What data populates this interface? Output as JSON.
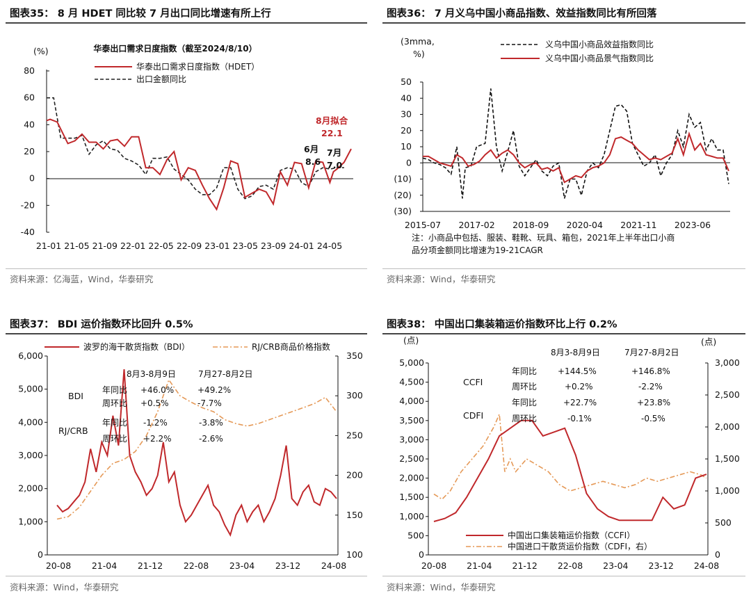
{
  "panels": [
    {
      "title": "图表35： 8 月 HDET 同比较 7 月出口同比增速有所上行",
      "source": "资料来源：亿海蓝，Wind，华泰研究",
      "chart_data": {
        "type": "line",
        "title": "华泰出口需求日度指数（截至2024/8/10）",
        "unit": "(%)",
        "x_ticks": [
          "21-01",
          "21-05",
          "21-09",
          "22-01",
          "22-05",
          "22-09",
          "23-01",
          "23-05",
          "23-09",
          "24-01",
          "24-05"
        ],
        "ylim": [
          -40,
          80
        ],
        "y_ticks": [
          "80",
          "60",
          "40",
          "20",
          "0",
          "-20",
          "-40"
        ],
        "series": [
          {
            "name": "华泰出口需求日度指数（HDET）",
            "color": "#c0282b",
            "style": "solid",
            "t": [
              0,
              0.5,
              1.5,
              3,
              4,
              5,
              6,
              7,
              8,
              9,
              10,
              11,
              12,
              13,
              14,
              15,
              16,
              17,
              18,
              19,
              20,
              21,
              22,
              23,
              24,
              25,
              26,
              27,
              28,
              29,
              30,
              31,
              32,
              33,
              34,
              35,
              36,
              37,
              38,
              39,
              40,
              40.5,
              41,
              42,
              43
            ],
            "values": [
              43,
              44,
              42,
              26,
              28,
              33,
              27,
              27,
              22,
              28,
              29,
              24,
              31,
              31,
              8,
              8,
              3,
              14,
              20,
              -1,
              8,
              6,
              -5,
              -15,
              -23,
              -7,
              13,
              11,
              -14,
              -11,
              -8,
              -10,
              -19,
              5,
              -5,
              12,
              11,
              -7,
              13,
              12,
              -3,
              5,
              7,
              12,
              22
            ]
          },
          {
            "name": "出口金额同比",
            "color": "#222222",
            "style": "dashed",
            "t": [
              0,
              1,
              2,
              3,
              4,
              5,
              6,
              7,
              8,
              9,
              10,
              11,
              12,
              13,
              14,
              15,
              16,
              17,
              18,
              19,
              20,
              21,
              22,
              23,
              24,
              25,
              26,
              27,
              28,
              29,
              30,
              31,
              32,
              33,
              34,
              35,
              36,
              37,
              38,
              39,
              40,
              41,
              42
            ],
            "values": [
              60,
              60,
              30,
              30,
              30,
              32,
              18,
              25,
              28,
              22,
              21,
              15,
              13,
              10,
              3,
              15,
              15,
              16,
              7,
              3,
              -1,
              -8,
              -12,
              -12,
              -7,
              8,
              8,
              -8,
              -15,
              -13,
              -6,
              -5,
              -8,
              6,
              8,
              7,
              -3,
              -6,
              5,
              8,
              7,
              8,
              8
            ]
          }
        ],
        "annotations": {
          "aug_label": "8月拟合",
          "aug_value": "22.1",
          "jun_label": "6月",
          "jun_value": "8.6",
          "jul_label": "7月",
          "jul_value": "7.0"
        }
      }
    },
    {
      "title": "图表36： 7 月义乌中国小商品指数、效益指数同比有所回落",
      "source": "资料来源：Wind，华泰研究",
      "chart_data": {
        "type": "line",
        "unit_line1": "(3mma,",
        "unit_line2": "%)",
        "x_ticks": [
          "2015-07",
          "2017-02",
          "2018-09",
          "2020-04",
          "2021-11",
          "2023-06"
        ],
        "ylim": [
          -30,
          50
        ],
        "y_ticks": [
          "50",
          "40",
          "30",
          "20",
          "10",
          "0",
          "(10)",
          "(20)",
          "(30)"
        ],
        "series": [
          {
            "name": "义乌中国小商品效益指数同比",
            "color": "#111111",
            "style": "dashed",
            "t": [
              0,
              2,
              4,
              6,
              8,
              10,
              12,
              14,
              15,
              17,
              19,
              22,
              24,
              26,
              28,
              30,
              32,
              34,
              36,
              38,
              40,
              42,
              44,
              46,
              48,
              50,
              52,
              54,
              56,
              58,
              60,
              62,
              64,
              66,
              68,
              70,
              72,
              74,
              76,
              78,
              80,
              82,
              84,
              86,
              88,
              90,
              92,
              94,
              96,
              98,
              100,
              102,
              104,
              106,
              108
            ],
            "values": [
              3,
              2,
              0,
              -1,
              -3,
              -7,
              10,
              -22,
              -3,
              -2,
              10,
              12,
              46,
              10,
              -5,
              7,
              20,
              -2,
              -8,
              -3,
              2,
              -5,
              -8,
              -2,
              0,
              -22,
              -10,
              -10,
              -20,
              -5,
              0,
              -3,
              5,
              20,
              35,
              36,
              32,
              12,
              5,
              -2,
              0,
              5,
              -8,
              0,
              5,
              20,
              10,
              30,
              22,
              25,
              8,
              15,
              8,
              8,
              -13
            ]
          },
          {
            "name": "义乌中国小商品景气指数同比",
            "color": "#c0282b",
            "style": "solid",
            "t": [
              0,
              2,
              4,
              6,
              8,
              10,
              12,
              14,
              16,
              18,
              20,
              22,
              24,
              26,
              28,
              30,
              32,
              34,
              36,
              38,
              40,
              42,
              44,
              46,
              48,
              50,
              52,
              54,
              56,
              58,
              60,
              62,
              64,
              66,
              68,
              70,
              72,
              74,
              76,
              78,
              80,
              82,
              84,
              86,
              88,
              90,
              92,
              94,
              96,
              98,
              100,
              102,
              104,
              106,
              108
            ],
            "values": [
              4,
              4,
              2,
              0,
              -1,
              -2,
              5,
              3,
              -2,
              -1,
              1,
              5,
              8,
              3,
              6,
              8,
              5,
              0,
              -3,
              -1,
              0,
              -4,
              -3,
              -5,
              -3,
              -12,
              -10,
              -8,
              -9,
              -5,
              -3,
              -2,
              0,
              5,
              15,
              16,
              14,
              12,
              8,
              5,
              2,
              3,
              2,
              4,
              6,
              15,
              5,
              18,
              8,
              12,
              5,
              4,
              3,
              3,
              -5
            ]
          }
        ],
        "note_line1": "注：小商品中包括、服装、鞋靴、玩具、箱包，2021年上半年出口小商",
        "note_line2": "品分项金额同比增速为19-21CAGR"
      }
    },
    {
      "title": "图表37： BDI 运价指数环比回升 0.5%",
      "source": "资料来源：Wind，华泰研究",
      "chart_data": {
        "type": "line",
        "x_ticks": [
          "20-08",
          "21-04",
          "21-12",
          "22-08",
          "23-04",
          "23-12",
          "24-08"
        ],
        "ylim_left": [
          0,
          6000
        ],
        "y_ticks_left": [
          "6,000",
          "5,000",
          "4,000",
          "3,000",
          "2,000",
          "1,000",
          "0"
        ],
        "ylim_right": [
          100,
          350
        ],
        "y_ticks_right": [
          "350",
          "300",
          "250",
          "200",
          "150",
          "100"
        ],
        "series": [
          {
            "name": "波罗的海干散货指数（BDI）",
            "color": "#c0282b",
            "style": "solid",
            "axis": "left",
            "t": [
              0,
              2,
              4,
              6,
              8,
              10,
              12,
              14,
              16,
              18,
              20,
              22,
              24,
              26,
              28,
              30,
              32,
              34,
              36,
              38,
              40,
              42,
              44,
              46,
              48,
              50,
              52,
              54,
              56,
              58,
              60,
              62,
              64,
              66,
              68,
              70,
              72,
              74,
              76,
              78,
              80,
              82,
              84,
              86,
              88,
              90,
              92,
              94,
              96,
              98,
              100
            ],
            "values": [
              1500,
              1300,
              1400,
              1600,
              1800,
              2200,
              3200,
              2500,
              3400,
              3000,
              4200,
              3300,
              5600,
              3000,
              2500,
              2200,
              1800,
              2000,
              2400,
              3400,
              2200,
              2500,
              1500,
              1000,
              1200,
              1500,
              1800,
              2100,
              1500,
              1300,
              900,
              600,
              1200,
              1500,
              1000,
              1300,
              1500,
              1000,
              1300,
              1700,
              2400,
              3300,
              1700,
              1500,
              1900,
              2100,
              1600,
              1500,
              2000,
              1900,
              1700
            ]
          },
          {
            "name": "RJ/CRB商品价格指数",
            "color": "#e59957",
            "style": "dashdot",
            "axis": "right",
            "t": [
              0,
              4,
              8,
              12,
              16,
              20,
              24,
              28,
              32,
              36,
              40,
              44,
              48,
              52,
              56,
              60,
              64,
              68,
              72,
              76,
              80,
              84,
              88,
              92,
              96,
              100
            ],
            "values": [
              145,
              148,
              160,
              180,
              200,
              215,
              220,
              230,
              250,
              280,
              320,
              300,
              292,
              285,
              280,
              270,
              265,
              262,
              265,
              270,
              275,
              280,
              285,
              290,
              298,
              280
            ]
          }
        ],
        "stats_headers": [
          "8月3-8月9日",
          "7月27-8月2日"
        ],
        "stats": [
          {
            "group": "BDI",
            "rows": [
              [
                "年同比",
                "+46.0%",
                "+49.2%"
              ],
              [
                "周环比",
                "+0.5%",
                "-7.7%"
              ]
            ]
          },
          {
            "group": "RJ/CRB",
            "rows": [
              [
                "年同比",
                "-1.2%",
                "-3.8%"
              ],
              [
                "周环比",
                "+2.2%",
                "-2.6%"
              ]
            ]
          }
        ]
      }
    },
    {
      "title": "图表38： 中国出口集装箱运价指数环比上行 0.2%",
      "source": "资料来源：Wind，华泰研究",
      "chart_data": {
        "type": "line",
        "unit_left": "(点)",
        "unit_right": "(点)",
        "x_ticks": [
          "20-08",
          "21-04",
          "21-12",
          "22-08",
          "23-04",
          "23-12",
          "24-08"
        ],
        "ylim_left": [
          0,
          5000
        ],
        "y_ticks_left": [
          "5,000",
          "4,500",
          "4,000",
          "3,500",
          "3,000",
          "2,500",
          "2,000",
          "1,500",
          "1,000",
          "500",
          "0"
        ],
        "ylim_right": [
          0,
          3000
        ],
        "y_ticks_right": [
          "3,000",
          "2,500",
          "2,000",
          "1,500",
          "1,000",
          "500",
          "0"
        ],
        "series": [
          {
            "name": "中国出口集装箱运价指数（CCFI）",
            "color": "#c0282b",
            "style": "solid",
            "axis": "left",
            "t": [
              0,
              4,
              8,
              12,
              16,
              20,
              24,
              28,
              32,
              36,
              40,
              44,
              48,
              52,
              56,
              60,
              64,
              68,
              72,
              76,
              80,
              84,
              88,
              92,
              96,
              100
            ],
            "values": [
              870,
              950,
              1100,
              1500,
              2000,
              2500,
              3100,
              3300,
              3500,
              3500,
              3100,
              3200,
              3300,
              2600,
              1600,
              1200,
              1000,
              900,
              900,
              900,
              900,
              1500,
              1200,
              1300,
              2000,
              2100
            ]
          },
          {
            "name": "中国进口干散货运价指数（CDFI，右）",
            "color": "#e59957",
            "style": "dashdot",
            "axis": "right",
            "t": [
              0,
              3,
              6,
              10,
              14,
              18,
              22,
              24,
              26,
              28,
              30,
              32,
              34,
              38,
              42,
              46,
              50,
              54,
              58,
              62,
              66,
              70,
              74,
              78,
              82,
              86,
              90,
              94,
              98,
              100
            ],
            "values": [
              950,
              870,
              1000,
              1300,
              1500,
              1700,
              2000,
              2200,
              1300,
              1500,
              1300,
              1400,
              1500,
              1400,
              1300,
              1100,
              1000,
              1050,
              1100,
              1150,
              1100,
              1050,
              1100,
              1200,
              1150,
              1200,
              1250,
              1300,
              1250,
              1200
            ]
          }
        ],
        "stats_headers": [
          "8月3-8月9日",
          "7月27-8月2日"
        ],
        "stats": [
          {
            "group": "CCFI",
            "rows": [
              [
                "年同比",
                "+144.5%",
                "+146.8%"
              ],
              [
                "周环比",
                "+0.2%",
                "-2.2%"
              ]
            ]
          },
          {
            "group": "CDFI",
            "rows": [
              [
                "年同比",
                "+22.7%",
                "+23.8%"
              ],
              [
                "周环比",
                "-0.1%",
                "-0.5%"
              ]
            ]
          }
        ]
      }
    }
  ]
}
